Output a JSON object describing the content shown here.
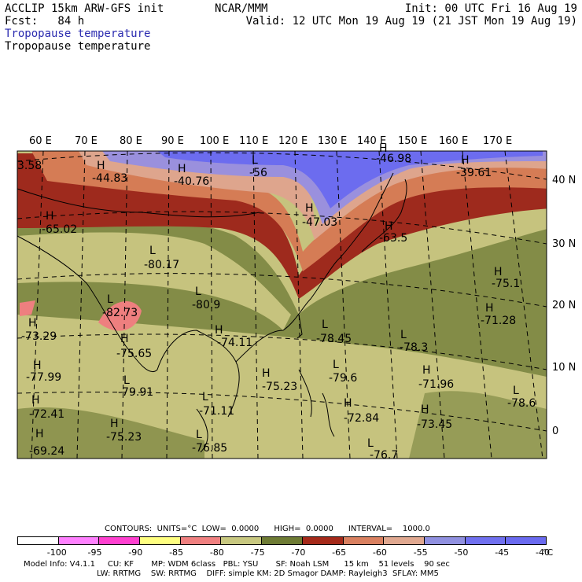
{
  "header": {
    "left_line1": "ACCLIP 15km ARW-GFS init",
    "left_line2": "Fcst:   84 h",
    "center": "NCAR/MMM",
    "right_line1": "Init: 00 UTC Fri 16 Aug 19",
    "right_line2": "Valid: 12 UTC Mon 19 Aug 19 (21 JST Mon 19 Aug 19)",
    "field_colored": "Tropopause temperature",
    "field_black": "Tropopause temperature"
  },
  "lon_labels": [
    "60 E",
    "70 E",
    "80 E",
    "90 E",
    "100 E",
    "110 E",
    "120 E",
    "130 E",
    "140 E",
    "150 E",
    "160 E",
    "170 E"
  ],
  "lat_labels": [
    "40 N",
    "30 N",
    "20 N",
    "10 N",
    "0"
  ],
  "markers": [
    {
      "k": "H",
      "v": "-44.83"
    },
    {
      "k": "H",
      "v": "-40.76"
    },
    {
      "k": "L",
      "v": "-56"
    },
    {
      "k": "H",
      "v": "-46.98"
    },
    {
      "k": "H",
      "v": "-39.61"
    },
    {
      "k": "H",
      "v": "-47.03"
    },
    {
      "k": "H",
      "v": "-63.5"
    },
    {
      "k": "H",
      "v": "-65.02"
    },
    {
      "k": "L",
      "v": "-80.17"
    },
    {
      "k": "L",
      "v": "-82.73"
    },
    {
      "k": "L",
      "v": "-80.9"
    },
    {
      "k": "H",
      "v": "-73.29"
    },
    {
      "k": "H",
      "v": "-75.65"
    },
    {
      "k": "H",
      "v": "-74.11"
    },
    {
      "k": "L",
      "v": "-78.45"
    },
    {
      "k": "L",
      "v": "-78.3"
    },
    {
      "k": "H",
      "v": "-75.1"
    },
    {
      "k": "H",
      "v": "-71.28"
    },
    {
      "k": "H",
      "v": "-77.99"
    },
    {
      "k": "L",
      "v": "-79.91"
    },
    {
      "k": "H",
      "v": "-75.23"
    },
    {
      "k": "L",
      "v": "-79.6"
    },
    {
      "k": "H",
      "v": "-71.96"
    },
    {
      "k": "L",
      "v": "-78.6"
    },
    {
      "k": "H",
      "v": "-72.41"
    },
    {
      "k": "L",
      "v": "-71.11"
    },
    {
      "k": "H",
      "v": "-72.84"
    },
    {
      "k": "H",
      "v": "-73.45"
    },
    {
      "k": "H",
      "v": "-75.23"
    },
    {
      "k": "L",
      "v": "-76.85"
    },
    {
      "k": "H",
      "v": "-69.24"
    },
    {
      "k": "L",
      "v": "-76.7"
    },
    {
      "k": "",
      "v": "3.58"
    }
  ],
  "contours_line": "CONTOURS:  UNITS=°C  LOW=  0.0000      HIGH=  0.0000      INTERVAL=    1000.0",
  "colorbar": {
    "colors": [
      "#ffffff",
      "#ff80ff",
      "#ff40d0",
      "#ffff80",
      "#f08080",
      "#c8c880",
      "#6e7b34",
      "#a52a1a",
      "#d98060",
      "#e0a890",
      "#9090e0",
      "#7070f0",
      "#6a6af0"
    ],
    "ticks": [
      "-100",
      "-95",
      "-90",
      "-85",
      "-80",
      "-75",
      "-70",
      "-65",
      "-60",
      "-55",
      "-50",
      "-45",
      "-40"
    ],
    "unit": "°C"
  },
  "footer": {
    "line1": "Model Info: V4.1.1     CU: KF       MP: WDM 6class   PBL: YSU       SF: Noah LSM      15 km    51 levels    90 sec",
    "line2": "LW: RRTMG    SW: RRTMG    DIFF: simple KM: 2D Smagor DAMP: Rayleigh3  SFLAY: MM5"
  }
}
